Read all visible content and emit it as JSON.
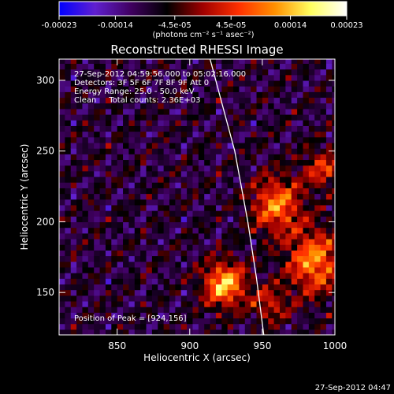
{
  "chart_data": {
    "type": "heatmap",
    "title": "Reconstructed RHESSI Image",
    "xlabel": "Heliocentric X (arcsec)",
    "ylabel": "Heliocentric Y (arcsec)",
    "xlim": [
      810,
      1000
    ],
    "ylim": [
      120,
      315
    ],
    "x_ticks": [
      850,
      900,
      950,
      1000
    ],
    "y_ticks": [
      150,
      200,
      250,
      300
    ],
    "colorbar": {
      "label": "(photons cm⁻² s⁻¹ asec⁻²)",
      "range": [
        -0.00023,
        0.00023
      ],
      "ticks": [
        "-0.00023",
        "-0.00014",
        "-4.5e-05",
        "4.5e-05",
        "0.00014",
        "0.00023"
      ],
      "tick_values": [
        -0.00023,
        -0.00014,
        -4.5e-05,
        4.5e-05,
        0.00014,
        0.00023
      ],
      "colors": [
        "#0000ff",
        "#6020d0",
        "#400060",
        "#000000",
        "#a00000",
        "#ff3000",
        "#ff9000",
        "#ffff60",
        "#ffffff"
      ]
    },
    "annotations": [
      "27-Sep-2012 04:59:56.000 to 05:02:16.000",
      "Detectors: 3F 5F 6F 7F 8F 9F Att 0",
      "Energy Range: 25.0 - 50.0 keV",
      "Clean     Total counts: 2.36E+03"
    ],
    "peak_label": "Position of Peak = [924,156]",
    "peak": [
      924,
      156
    ],
    "limb_curve": [
      [
        914,
        315
      ],
      [
        931,
        250
      ],
      [
        940,
        200
      ],
      [
        946,
        160
      ],
      [
        951,
        120
      ]
    ],
    "sources": [
      {
        "x": 924,
        "y": 156,
        "amp": 0.00023,
        "sx": 10,
        "sy": 11
      },
      {
        "x": 986,
        "y": 172,
        "amp": 0.00019,
        "sx": 13,
        "sy": 16
      },
      {
        "x": 960,
        "y": 212,
        "amp": 0.00018,
        "sx": 12,
        "sy": 14
      },
      {
        "x": 992,
        "y": 238,
        "amp": 0.00012,
        "sx": 10,
        "sy": 10
      },
      {
        "x": 955,
        "y": 142,
        "amp": 0.00011,
        "sx": 9,
        "sy": 9
      }
    ]
  },
  "timestamp": "27-Sep-2012 04:47"
}
